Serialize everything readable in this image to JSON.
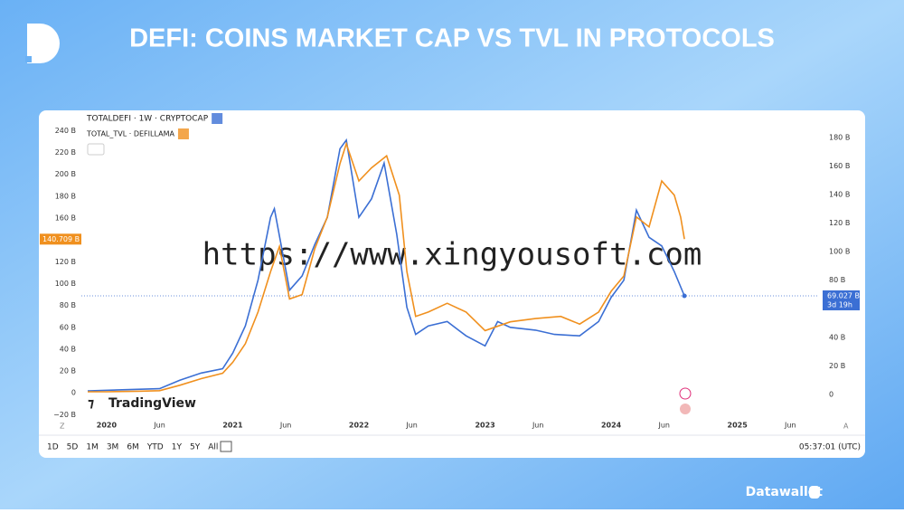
{
  "header": {
    "title": "DEFI: COINS MARKET CAP VS TVL IN PROTOCOLS",
    "brand": "Datawallet"
  },
  "watermark": "https://www.xingyousoft.com",
  "chart_data": {
    "type": "line",
    "logo": "TradingView",
    "xlim": [
      2019.8,
      2025.64
    ],
    "xticks": [
      2020,
      {
        "value": 2020.42,
        "label": "Jun"
      },
      2021,
      {
        "value": 2021.42,
        "label": "Jun"
      },
      2022,
      {
        "value": 2022.42,
        "label": "Jun"
      },
      2023,
      {
        "value": 2023.42,
        "label": "Jun"
      },
      2024,
      {
        "value": 2024.42,
        "label": "Jun"
      },
      2025,
      {
        "value": 2025.42,
        "label": "Jun"
      }
    ],
    "ylim": [
      -23,
      247
    ],
    "yticks": [
      {
        "value": -20,
        "label": "−20 B"
      },
      0,
      {
        "value": 20,
        "label": "20 B"
      },
      {
        "value": 40,
        "label": "40 B"
      },
      {
        "value": 60,
        "label": "60 B"
      },
      {
        "value": 80,
        "label": "80 B"
      },
      {
        "value": 100,
        "label": "100 B"
      },
      {
        "value": 120,
        "label": "120 B"
      },
      {
        "value": 160,
        "label": "160 B"
      },
      {
        "value": 180,
        "label": "180 B"
      },
      {
        "value": 200,
        "label": "200 B"
      },
      {
        "value": 220,
        "label": "220 B"
      },
      {
        "value": 240,
        "label": "240 B"
      }
    ],
    "y2lim": [
      -16.5,
      190
    ],
    "y2ticks": [
      0,
      {
        "value": 20,
        "label": "20 B"
      },
      {
        "value": 40,
        "label": "40 B"
      },
      {
        "value": 80,
        "label": "80 B"
      },
      {
        "value": 100,
        "label": "100 B"
      },
      {
        "value": 120,
        "label": "120 B"
      },
      {
        "value": 140,
        "label": "140 B"
      },
      {
        "value": 160,
        "label": "160 B"
      },
      {
        "value": 180,
        "label": "180 B"
      }
    ],
    "grid": false,
    "series": [
      {
        "name": "TOTALDEFI · 1W · CRYPTOCAP",
        "color": "#3b6fd4",
        "axis": "y2",
        "last_label": "69.027 B",
        "countdown": "3d 19h",
        "x": [
          2019.85,
          2020.42,
          2020.58,
          2020.75,
          2020.92,
          2021.0,
          2021.1,
          2021.2,
          2021.3,
          2021.33,
          2021.45,
          2021.55,
          2021.65,
          2021.75,
          2021.85,
          2021.9,
          2022.0,
          2022.1,
          2022.2,
          2022.3,
          2022.38,
          2022.45,
          2022.55,
          2022.7,
          2022.85,
          2023.0,
          2023.1,
          2023.2,
          2023.4,
          2023.55,
          2023.75,
          2023.9,
          2024.0,
          2024.1,
          2024.2,
          2024.3,
          2024.4,
          2024.5,
          2024.58
        ],
        "values": [
          2.5,
          4,
          10,
          15,
          18,
          29,
          48,
          80,
          124,
          130,
          73,
          83,
          105,
          124,
          172,
          178,
          124,
          137,
          162,
          112,
          61,
          42,
          48,
          51,
          41,
          34,
          51,
          47,
          45,
          42,
          41,
          51,
          68,
          80,
          129,
          110,
          104,
          86,
          69.027
        ]
      },
      {
        "name": "TOTAL_TVL · DEFILLAMA",
        "color": "#f0901e",
        "axis": "y",
        "last_label": "140.709 B",
        "x": [
          2019.85,
          2020.0,
          2020.25,
          2020.42,
          2020.58,
          2020.75,
          2020.92,
          2021.0,
          2021.1,
          2021.2,
          2021.3,
          2021.37,
          2021.45,
          2021.55,
          2021.65,
          2021.75,
          2021.85,
          2021.9,
          2022.0,
          2022.1,
          2022.22,
          2022.32,
          2022.38,
          2022.45,
          2022.55,
          2022.7,
          2022.85,
          2023.0,
          2023.2,
          2023.4,
          2023.6,
          2023.75,
          2023.9,
          2024.0,
          2024.1,
          2024.2,
          2024.3,
          2024.4,
          2024.5,
          2024.55,
          2024.58
        ],
        "values": [
          1,
          1,
          1.5,
          2,
          7,
          13,
          18,
          28,
          45,
          74,
          111,
          134,
          86,
          90,
          132,
          161,
          210,
          228,
          194,
          206,
          217,
          181,
          111,
          70,
          74,
          82,
          74,
          57,
          65,
          68,
          70,
          63,
          74,
          93,
          107,
          161,
          152,
          194,
          181,
          161,
          140.709
        ]
      }
    ],
    "intervals": [
      "1D",
      "5D",
      "1M",
      "3M",
      "6M",
      "YTD",
      "1Y",
      "5Y",
      "All"
    ],
    "clock": "05:37:01 (UTC)"
  }
}
